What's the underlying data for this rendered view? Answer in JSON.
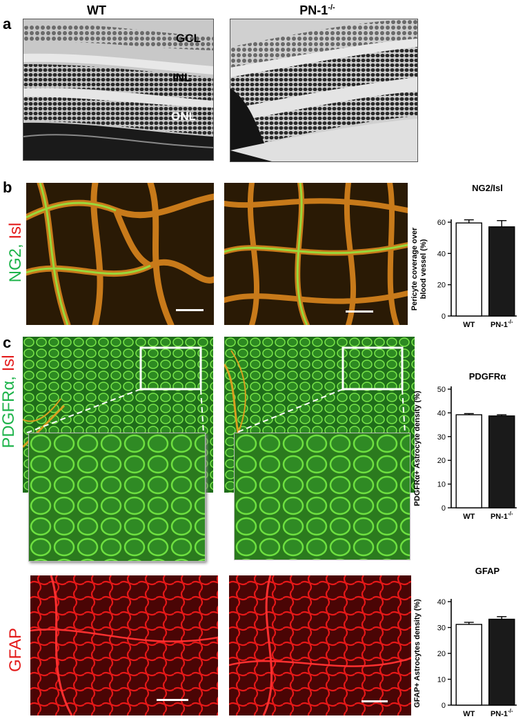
{
  "panels": {
    "a": {
      "letter": "a",
      "col_wt": "WT",
      "col_ko_base": "PN-1",
      "col_ko_sup": "-/-",
      "layers": {
        "gcl": "GCL",
        "inl": "INL",
        "onl": "ONL"
      }
    },
    "b": {
      "letter": "b",
      "stain_green": "NG2, ",
      "stain_red": "Isl",
      "colors": {
        "green": "#1db34a",
        "red": "#e31b1b"
      }
    },
    "c": {
      "letter": "c",
      "stain_green": "PDGFRα, ",
      "stain_red": "Isl",
      "gfap_label": "GFAP"
    }
  },
  "charts": {
    "ng2": {
      "type": "bar",
      "title": "NG2/Isl",
      "ylabel_line1": "Pericyte coverage over",
      "ylabel_line2": "blood vessel (%)",
      "categories": [
        "WT",
        "PN-1"
      ],
      "cat_sup": [
        "",
        "-/-"
      ],
      "values": [
        59.5,
        57
      ],
      "errors": [
        2,
        4
      ],
      "ylim": [
        0,
        60
      ],
      "ticks": [
        0,
        20,
        40,
        60
      ],
      "fills": [
        "#ffffff",
        "#1a1a1a"
      ]
    },
    "pdgfra": {
      "type": "bar",
      "title": "PDGFRα",
      "ylabel_line1": "PDGFRα+ Astrocyte density (%)",
      "ylabel_line2": "",
      "categories": [
        "WT",
        "PN-1"
      ],
      "cat_sup": [
        "",
        "-/-"
      ],
      "values": [
        39.2,
        38.7
      ],
      "errors": [
        0.5,
        0.5
      ],
      "ylim": [
        0,
        50
      ],
      "ticks": [
        0,
        10,
        20,
        30,
        40,
        50
      ],
      "fills": [
        "#ffffff",
        "#1a1a1a"
      ]
    },
    "gfap": {
      "type": "bar",
      "title": "GFAP",
      "ylabel_line1": "GFAP+ Astrocytes density (%)",
      "ylabel_line2": "",
      "categories": [
        "WT",
        "PN-1"
      ],
      "cat_sup": [
        "",
        "-/-"
      ],
      "values": [
        31.2,
        33.2
      ],
      "errors": [
        0.8,
        1
      ],
      "ylim": [
        0,
        40
      ],
      "ticks": [
        0,
        10,
        20,
        30,
        40
      ],
      "fills": [
        "#ffffff",
        "#1a1a1a"
      ]
    }
  },
  "chart_data": [
    {
      "type": "bar",
      "title": "NG2/Isl",
      "categories": [
        "WT",
        "PN-1-/-"
      ],
      "values": [
        59.5,
        57
      ],
      "ylabel": "Pericyte coverage over blood vessel (%)",
      "ylim": [
        0,
        60
      ]
    },
    {
      "type": "bar",
      "title": "PDGFRα",
      "categories": [
        "WT",
        "PN-1-/-"
      ],
      "values": [
        39.2,
        38.7
      ],
      "ylabel": "PDGFRα+ Astrocyte density (%)",
      "ylim": [
        0,
        50
      ]
    },
    {
      "type": "bar",
      "title": "GFAP",
      "categories": [
        "WT",
        "PN-1-/-"
      ],
      "values": [
        31.2,
        33.2
      ],
      "ylabel": "GFAP+ Astrocytes density (%)",
      "ylim": [
        0,
        40
      ]
    }
  ]
}
